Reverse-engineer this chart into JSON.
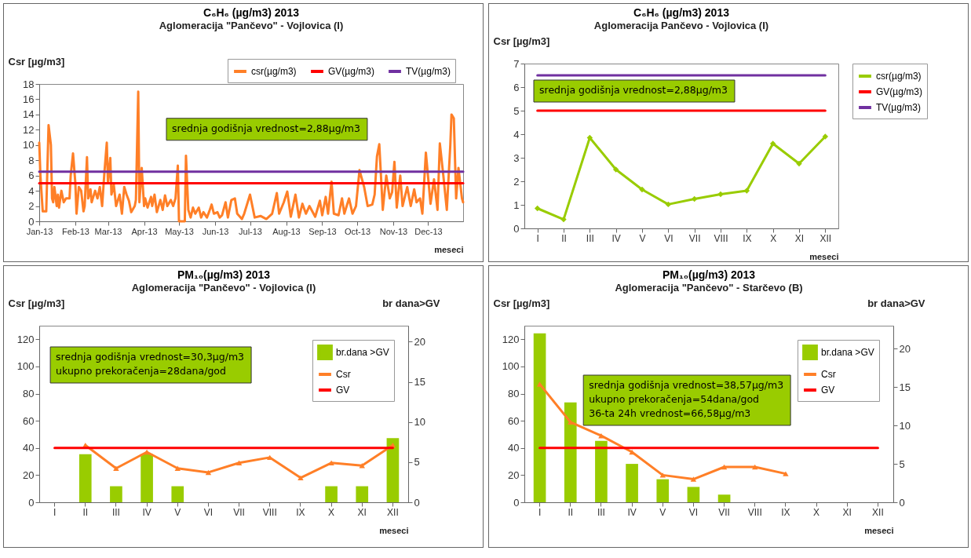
{
  "chart_data": [
    {
      "type": "line",
      "title": "C₆H₆ (µg/m3) 2013",
      "subtitle": "Aglomeracija \"Pančevo\" - Vojlovica (I)",
      "xlabel": "meseci",
      "ylabel": "Csr [µg/m3]",
      "annotations": [
        "srednja godišnja vrednost=2,88µg/m3"
      ],
      "xlim": [
        "2013-01-01",
        "2013-12-31"
      ],
      "xticks": [
        {
          "value": "2013-01-01",
          "label": "Jan-13"
        },
        {
          "value": "2013-02-01",
          "label": "Feb-13"
        },
        {
          "value": "2013-03-01",
          "label": "Mar-13"
        },
        {
          "value": "2013-04-01",
          "label": "Apr-13"
        },
        {
          "value": "2013-05-01",
          "label": "May-13"
        },
        {
          "value": "2013-06-01",
          "label": "Jun-13"
        },
        {
          "value": "2013-07-01",
          "label": "Jul-13"
        },
        {
          "value": "2013-08-01",
          "label": "Aug-13"
        },
        {
          "value": "2013-09-01",
          "label": "Sep-13"
        },
        {
          "value": "2013-10-01",
          "label": "Oct-13"
        },
        {
          "value": "2013-11-01",
          "label": "Nov-13"
        },
        {
          "value": "2013-12-01",
          "label": "Dec-13"
        }
      ],
      "ylim": [
        0,
        18
      ],
      "yticks": [
        0,
        2,
        4,
        6,
        8,
        10,
        12,
        14,
        16,
        18
      ],
      "legend": "top",
      "series": [
        {
          "name": "csr(µg/m3)",
          "color": "#ff7f27",
          "x": [
            "2013-01-01",
            "2013-01-02",
            "2013-01-04",
            "2013-01-07",
            "2013-01-09",
            "2013-01-11",
            "2013-01-12",
            "2013-01-13",
            "2013-01-14",
            "2013-01-16",
            "2013-01-17",
            "2013-01-18",
            "2013-01-20",
            "2013-01-22",
            "2013-01-24",
            "2013-01-27",
            "2013-01-28",
            "2013-01-30",
            "2013-02-01",
            "2013-02-02",
            "2013-02-04",
            "2013-02-06",
            "2013-02-08",
            "2013-02-09",
            "2013-02-11",
            "2013-02-12",
            "2013-02-14",
            "2013-02-15",
            "2013-02-18",
            "2013-02-20",
            "2013-02-22",
            "2013-02-24",
            "2013-02-26",
            "2013-02-28",
            "2013-03-01",
            "2013-03-03",
            "2013-03-04",
            "2013-03-06",
            "2013-03-08",
            "2013-03-11",
            "2013-03-13",
            "2013-03-15",
            "2013-03-17",
            "2013-03-19",
            "2013-03-21",
            "2013-03-24",
            "2013-03-25",
            "2013-03-27",
            "2013-03-28",
            "2013-03-30",
            "2013-04-01",
            "2013-04-02",
            "2013-04-04",
            "2013-04-07",
            "2013-04-08",
            "2013-04-10",
            "2013-04-12",
            "2013-04-15",
            "2013-04-17",
            "2013-04-19",
            "2013-04-21",
            "2013-04-24",
            "2013-04-26",
            "2013-04-28",
            "2013-04-30",
            "2013-05-01",
            "2013-05-06",
            "2013-05-07",
            "2013-05-09",
            "2013-05-11",
            "2013-05-13",
            "2013-05-15",
            "2013-05-18",
            "2013-05-20",
            "2013-05-22",
            "2013-05-25",
            "2013-05-27",
            "2013-05-29",
            "2013-05-31",
            "2013-06-03",
            "2013-06-05",
            "2013-06-07",
            "2013-06-10",
            "2013-06-12",
            "2013-06-15",
            "2013-06-18",
            "2013-06-20",
            "2013-06-24",
            "2013-06-26",
            "2013-07-01",
            "2013-07-05",
            "2013-07-10",
            "2013-07-15",
            "2013-07-20",
            "2013-07-24",
            "2013-07-26",
            "2013-07-30",
            "2013-08-02",
            "2013-08-05",
            "2013-08-09",
            "2013-08-12",
            "2013-08-15",
            "2013-08-18",
            "2013-08-21",
            "2013-08-26",
            "2013-08-30",
            "2013-09-01",
            "2013-09-04",
            "2013-09-06",
            "2013-09-09",
            "2013-09-11",
            "2013-09-15",
            "2013-09-18",
            "2013-09-20",
            "2013-09-24",
            "2013-09-27",
            "2013-09-30",
            "2013-10-03",
            "2013-10-07",
            "2013-10-10",
            "2013-10-14",
            "2013-10-16",
            "2013-10-18",
            "2013-10-20",
            "2013-10-23",
            "2013-10-26",
            "2013-10-29",
            "2013-10-31",
            "2013-11-02",
            "2013-11-04",
            "2013-11-07",
            "2013-11-09",
            "2013-11-13",
            "2013-11-16",
            "2013-11-19",
            "2013-11-21",
            "2013-11-24",
            "2013-11-26",
            "2013-11-29",
            "2013-12-03",
            "2013-12-06",
            "2013-12-09",
            "2013-12-11",
            "2013-12-14",
            "2013-12-17",
            "2013-12-20",
            "2013-12-21",
            "2013-12-23",
            "2013-12-25",
            "2013-12-27",
            "2013-12-30",
            "2013-12-31"
          ],
          "values": [
            10.3,
            6,
            1.3,
            1.3,
            12.6,
            10,
            3,
            2.5,
            4.5,
            2,
            3.5,
            1.8,
            4,
            2.5,
            3,
            3,
            6,
            8.9,
            5,
            1,
            4.5,
            4,
            1.3,
            2,
            8.4,
            3,
            4.2,
            2.5,
            4,
            3,
            4.5,
            2,
            6.5,
            10.3,
            5,
            8.3,
            3.5,
            4.8,
            2,
            3.5,
            1,
            4.5,
            3.5,
            2.7,
            1.2,
            2,
            2.8,
            17,
            2.5,
            7,
            2,
            3,
            1.8,
            3.2,
            2,
            3.5,
            1.2,
            2.8,
            1.5,
            3.4,
            2,
            2.8,
            2,
            3,
            7.3,
            0,
            0,
            8.6,
            1.5,
            0.5,
            1.8,
            1,
            1.8,
            0.5,
            1.2,
            0.5,
            1.3,
            2.2,
            1,
            1.2,
            0.5,
            0.8,
            2.5,
            0.5,
            2.8,
            3,
            1,
            0.3,
            1,
            3.5,
            0.5,
            0.7,
            0.3,
            1,
            3.7,
            1,
            2.5,
            3.9,
            0.6,
            3.5,
            0.5,
            2.3,
            1,
            2,
            0.6,
            2.7,
            0.8,
            3.2,
            1,
            5.2,
            1,
            0.8,
            3,
            1,
            3,
            1,
            2,
            6.7,
            4.5,
            2,
            2.2,
            3.5,
            8.5,
            10.1,
            1.5,
            6,
            3,
            3.8,
            7.8,
            1.8,
            6,
            2,
            4.5,
            2,
            4.2,
            2.5,
            3,
            1,
            9,
            2.3,
            5.5,
            1.5,
            10.2,
            6,
            1.5,
            10,
            14,
            13.5,
            3,
            7,
            3,
            2.5
          ]
        },
        {
          "name": "GV(µg/m3)",
          "color": "#ff0000",
          "x": [
            "2013-01-01",
            "2013-12-31"
          ],
          "values": [
            5,
            5
          ]
        },
        {
          "name": "TV(µg/m3)",
          "color": "#7030a0",
          "x": [
            "2013-01-01",
            "2013-12-31"
          ],
          "values": [
            6.5,
            6.5
          ]
        }
      ]
    },
    {
      "type": "line",
      "title": "C₆H₆ (µg/m3) 2013",
      "subtitle": "Aglomeracija Pančevo - Vojlovica (I)",
      "xlabel": "meseci",
      "ylabel": "Csr [µg/m3]",
      "annotations": [
        "srednja godišnja vrednost=2,88µg/m3"
      ],
      "categories": [
        "I",
        "II",
        "III",
        "IV",
        "V",
        "VI",
        "VII",
        "VIII",
        "IX",
        "X",
        "XI",
        "XII"
      ],
      "ylim": [
        0,
        7
      ],
      "yticks": [
        0,
        1,
        2,
        3,
        4,
        5,
        6,
        7
      ],
      "legend": "right",
      "marker": "diamond",
      "series": [
        {
          "name": "csr(µg/m3)",
          "color": "#99cc00",
          "values": [
            0.85,
            0.38,
            3.85,
            2.5,
            1.65,
            1.02,
            1.25,
            1.45,
            1.6,
            3.6,
            2.75,
            3.9
          ]
        },
        {
          "name": "GV(µg/m3)",
          "color": "#ff0000",
          "marker": "none",
          "values": [
            5,
            5,
            5,
            5,
            5,
            5,
            5,
            5,
            5,
            5,
            5,
            5
          ]
        },
        {
          "name": "TV(µg/m3)",
          "color": "#7030a0",
          "marker": "none",
          "values": [
            6.5,
            6.5,
            6.5,
            6.5,
            6.5,
            6.5,
            6.5,
            6.5,
            6.5,
            6.5,
            6.5,
            6.5
          ]
        }
      ]
    },
    {
      "type": "bar",
      "title": "PM₁₀(µg/m3) 2013",
      "subtitle": "Aglomeracija \"Pančevo\" - Vojlovica (I)",
      "xlabel": "meseci",
      "ylabel": "Csr [µg/m3]",
      "y2label": "br dana>GV",
      "annotations": [
        "srednja godišnja vrednost=30,3µg/m3",
        "ukupno prekoračenja=28dana/god"
      ],
      "categories": [
        "I",
        "II",
        "III",
        "IV",
        "V",
        "VI",
        "VII",
        "VIII",
        "IX",
        "X",
        "XI",
        "XII"
      ],
      "ylim": [
        0,
        130
      ],
      "yticks": [
        0,
        20,
        40,
        60,
        80,
        100,
        120
      ],
      "y2lim": [
        0,
        22
      ],
      "y2ticks": [
        0,
        5,
        10,
        15,
        20
      ],
      "legend": "top right",
      "marker": "triangle",
      "series": [
        {
          "name": "br.dana >GV",
          "axis": "y2",
          "color": "#99cc00",
          "values": [
            null,
            6,
            2,
            6,
            2,
            0,
            0,
            0,
            0,
            2,
            2,
            8
          ]
        },
        {
          "name": "Csr",
          "type": "line",
          "color": "#ff7f27",
          "values": [
            null,
            42,
            25,
            37,
            25,
            22,
            29,
            33,
            18,
            29,
            27,
            42
          ]
        },
        {
          "name": "GV",
          "type": "line",
          "color": "#ff0000",
          "marker": "none",
          "values": [
            40,
            40,
            40,
            40,
            40,
            40,
            40,
            40,
            40,
            40,
            40,
            40
          ]
        }
      ]
    },
    {
      "type": "bar",
      "title": "PM₁₀(µg/m3) 2013",
      "subtitle": "Aglomeracija \"Pančevo\" - Starčevo (B)",
      "xlabel": "meseci",
      "ylabel": "Csr [µg/m3]",
      "y2label": "br dana>GV",
      "annotations": [
        "srednja godišnja vrednost=38,57µg/m3",
        "ukupno prekoračenja=54dana/god",
        "36-ta 24h vrednost=66,58µg/m3"
      ],
      "categories": [
        "I",
        "II",
        "III",
        "IV",
        "V",
        "VI",
        "VII",
        "VIII",
        "IX",
        "X",
        "XI",
        "XII"
      ],
      "ylim": [
        0,
        130
      ],
      "yticks": [
        0,
        20,
        40,
        60,
        80,
        100,
        120
      ],
      "y2lim": [
        0,
        23
      ],
      "y2ticks": [
        0,
        5,
        10,
        15,
        20
      ],
      "legend": "top right",
      "marker": "triangle",
      "series": [
        {
          "name": "br.dana >GV",
          "axis": "y2",
          "color": "#99cc00",
          "values": [
            22,
            13,
            8,
            5,
            3,
            2,
            1,
            0,
            0,
            null,
            null,
            null
          ]
        },
        {
          "name": "Csr",
          "type": "line",
          "color": "#ff7f27",
          "values": [
            87,
            59,
            49,
            37,
            20,
            17,
            26,
            26,
            21,
            null,
            null,
            null
          ]
        },
        {
          "name": "GV",
          "type": "line",
          "color": "#ff0000",
          "marker": "none",
          "values": [
            40,
            40,
            40,
            40,
            40,
            40,
            40,
            40,
            40,
            40,
            40,
            40
          ]
        }
      ]
    }
  ]
}
